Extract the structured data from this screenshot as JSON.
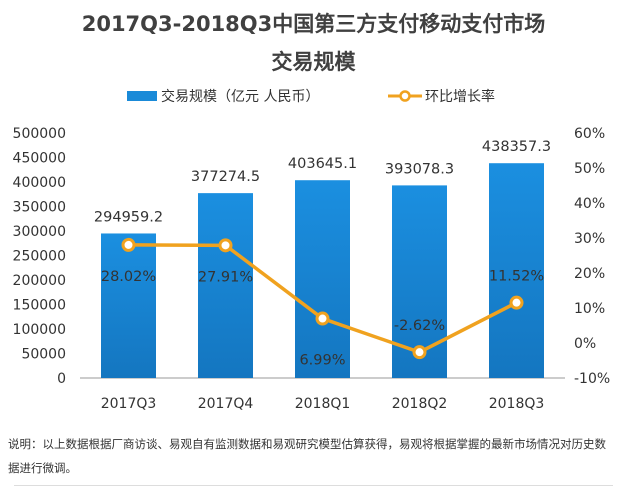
{
  "chart_data": {
    "type": "bar",
    "title": "2017Q3-2018Q3中国第三方支付移动支付市场",
    "subtitle": "交易规模",
    "categories": [
      "2017Q3",
      "2017Q4",
      "2018Q1",
      "2018Q2",
      "2018Q3"
    ],
    "series": [
      {
        "name": "交易规模（亿元 人民币）",
        "type": "bar",
        "axis": "left",
        "values": [
          294959.2,
          377274.5,
          403645.1,
          393078.3,
          438357.3
        ],
        "labels": [
          "294959.2",
          "377274.5",
          "403645.1",
          "393078.3",
          "438357.3"
        ],
        "color": "#1a8ad8"
      },
      {
        "name": "环比增长率",
        "type": "line",
        "axis": "right",
        "values": [
          28.02,
          27.91,
          6.99,
          -2.62,
          11.52
        ],
        "labels": [
          "28.02%",
          "27.91%",
          "6.99%",
          "-2.62%",
          "11.52%"
        ],
        "color": "#f0a21f"
      }
    ],
    "ylim_left": [
      0,
      500000
    ],
    "yticks_left": [
      "0",
      "50000",
      "100000",
      "150000",
      "200000",
      "250000",
      "300000",
      "350000",
      "400000",
      "450000",
      "500000"
    ],
    "ylim_right": [
      -10,
      60
    ],
    "yticks_right": [
      "-10%",
      "0%",
      "10%",
      "20%",
      "30%",
      "40%",
      "50%",
      "60%"
    ],
    "legend": "top",
    "grid": false
  },
  "note": "说明：以上数据根据厂商访谈、易观自有监测数据和易观研究模型估算获得，易观将根据掌握的最新市场情况对历史数据进行微调。"
}
